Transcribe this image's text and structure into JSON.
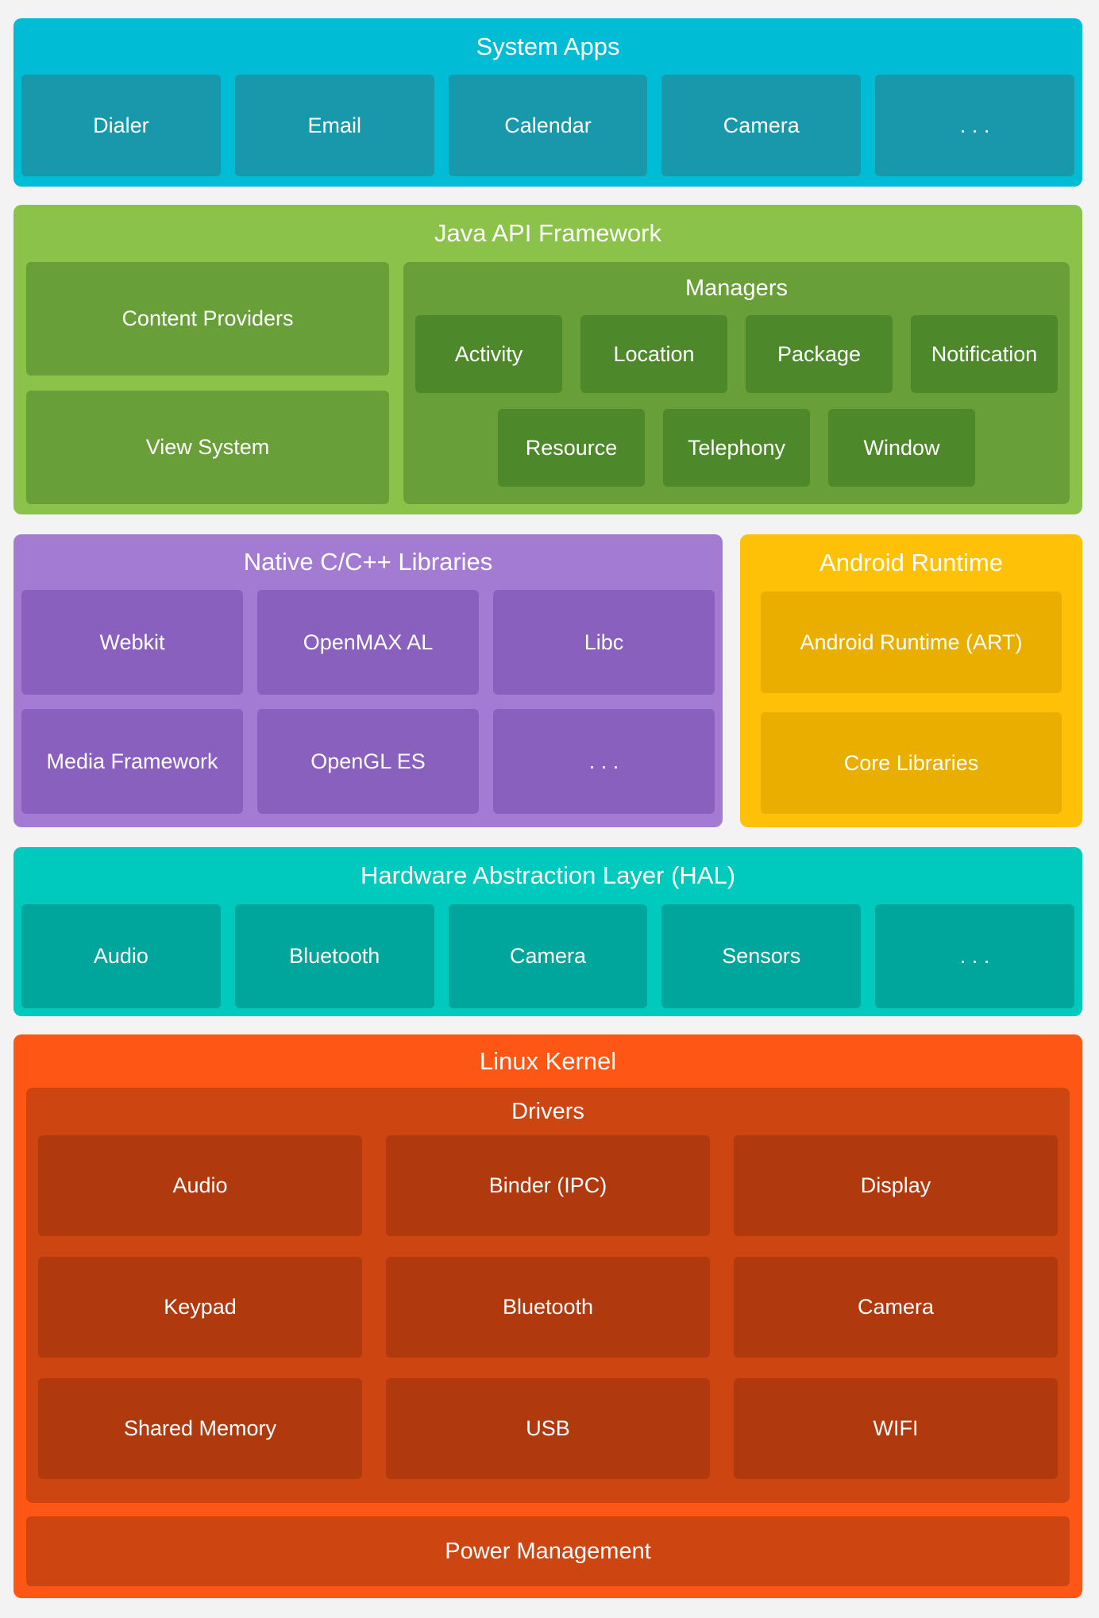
{
  "colors": {
    "page_background": "#F3F3F3",
    "system_apps_bg": "#00BCD4",
    "system_apps_box": "#1898AA",
    "java_bg": "#8BC34A",
    "java_box": "#689F38",
    "java_manager_box": "#4D892B",
    "native_bg": "#A37BD3",
    "native_box": "#8A60BF",
    "runtime_bg": "#FFC107",
    "runtime_box": "#E9AE00",
    "hal_bg": "#00C9BE",
    "hal_box": "#00A59C",
    "kernel_bg": "#FE5614",
    "kernel_container": "#CD4511",
    "kernel_box": "#B1390E",
    "text": "#FFFFFF"
  },
  "system_apps": {
    "title": "System Apps",
    "boxes": [
      "Dialer",
      "Email",
      "Calendar",
      "Camera",
      ". . ."
    ]
  },
  "java_api": {
    "title": "Java API Framework",
    "left_boxes": [
      "Content Providers",
      "View System"
    ],
    "managers": {
      "title": "Managers",
      "row1": [
        "Activity",
        "Location",
        "Package",
        "Notification"
      ],
      "row2": [
        "Resource",
        "Telephony",
        "Window"
      ]
    }
  },
  "native_libs": {
    "title": "Native C/C++ Libraries",
    "row1": [
      "Webkit",
      "OpenMAX AL",
      "Libc"
    ],
    "row2": [
      "Media Framework",
      "OpenGL ES",
      ". . ."
    ]
  },
  "android_runtime": {
    "title": "Android Runtime",
    "boxes": [
      "Android Runtime (ART)",
      "Core Libraries"
    ]
  },
  "hal": {
    "title": "Hardware Abstraction Layer (HAL)",
    "boxes": [
      "Audio",
      "Bluetooth",
      "Camera",
      "Sensors",
      ". . ."
    ]
  },
  "linux_kernel": {
    "title": "Linux Kernel",
    "drivers": {
      "title": "Drivers",
      "rows": [
        [
          "Audio",
          "Binder (IPC)",
          "Display"
        ],
        [
          "Keypad",
          "Bluetooth",
          "Camera"
        ],
        [
          "Shared Memory",
          "USB",
          "WIFI"
        ]
      ]
    },
    "power_label": "Power Management"
  }
}
